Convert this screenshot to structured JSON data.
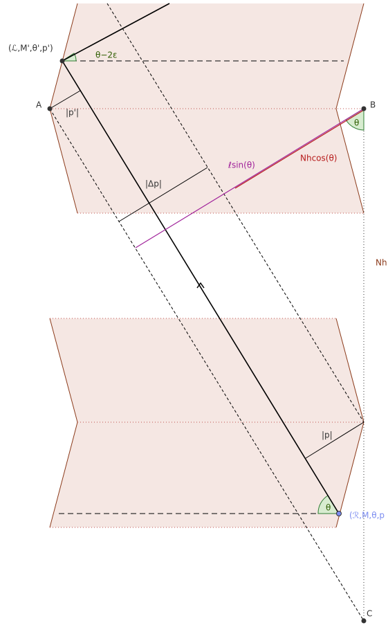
{
  "labels": {
    "point_top": "(ℒ,M',θ',p')",
    "angle_top": "θ−2ε",
    "point_a": "A",
    "p_prime": "|p'|",
    "point_b": "B",
    "angle_b": "θ",
    "l_sin": "ℓsin(θ)",
    "nh_cos": "Nhcos(θ)",
    "delta_p": "|Δp|",
    "nh": "Nh",
    "p": "|p|",
    "angle_bottom": "θ",
    "point_bottom": "(ℛ,M,θ,p",
    "point_c": "C"
  }
}
